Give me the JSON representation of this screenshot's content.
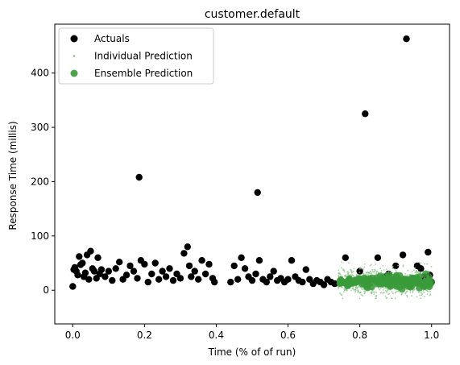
{
  "chart_data": {
    "type": "scatter",
    "title": "customer.default",
    "xlabel": "Time (% of of run)",
    "ylabel": "Response Time (millis)",
    "xlim": [
      -0.05,
      1.05
    ],
    "ylim": [
      -62,
      490
    ],
    "xticks": [
      0.0,
      0.2,
      0.4,
      0.6,
      0.8,
      1.0
    ],
    "xtick_labels": [
      "0.0",
      "0.2",
      "0.4",
      "0.6",
      "0.8",
      "1.0"
    ],
    "yticks": [
      0,
      100,
      200,
      300,
      400
    ],
    "ytick_labels": [
      "0",
      "100",
      "200",
      "300",
      "400"
    ],
    "grid": false,
    "legend_position": "top-left",
    "series": [
      {
        "name": "Actuals",
        "color": "#000000",
        "marker": "circle",
        "points": [
          [
            0.0,
            7
          ],
          [
            0.003,
            38
          ],
          [
            0.006,
            42
          ],
          [
            0.01,
            35
          ],
          [
            0.014,
            28
          ],
          [
            0.018,
            62
          ],
          [
            0.022,
            47
          ],
          [
            0.027,
            50
          ],
          [
            0.031,
            25
          ],
          [
            0.035,
            32
          ],
          [
            0.04,
            65
          ],
          [
            0.045,
            20
          ],
          [
            0.05,
            72
          ],
          [
            0.055,
            40
          ],
          [
            0.06,
            35
          ],
          [
            0.066,
            22
          ],
          [
            0.07,
            60
          ],
          [
            0.075,
            30
          ],
          [
            0.08,
            38
          ],
          [
            0.09,
            25
          ],
          [
            0.1,
            35
          ],
          [
            0.11,
            18
          ],
          [
            0.12,
            40
          ],
          [
            0.13,
            52
          ],
          [
            0.14,
            20
          ],
          [
            0.15,
            28
          ],
          [
            0.16,
            45
          ],
          [
            0.17,
            35
          ],
          [
            0.18,
            22
          ],
          [
            0.185,
            208
          ],
          [
            0.19,
            55
          ],
          [
            0.2,
            48
          ],
          [
            0.21,
            15
          ],
          [
            0.22,
            30
          ],
          [
            0.23,
            50
          ],
          [
            0.24,
            20
          ],
          [
            0.25,
            35
          ],
          [
            0.26,
            25
          ],
          [
            0.27,
            40
          ],
          [
            0.28,
            18
          ],
          [
            0.29,
            30
          ],
          [
            0.3,
            22
          ],
          [
            0.31,
            68
          ],
          [
            0.32,
            80
          ],
          [
            0.325,
            45
          ],
          [
            0.33,
            25
          ],
          [
            0.34,
            35
          ],
          [
            0.35,
            20
          ],
          [
            0.36,
            55
          ],
          [
            0.37,
            30
          ],
          [
            0.38,
            48
          ],
          [
            0.39,
            22
          ],
          [
            0.395,
            15
          ],
          [
            0.44,
            15
          ],
          [
            0.45,
            45
          ],
          [
            0.46,
            20
          ],
          [
            0.47,
            60
          ],
          [
            0.48,
            40
          ],
          [
            0.49,
            25
          ],
          [
            0.5,
            18
          ],
          [
            0.51,
            30
          ],
          [
            0.515,
            180
          ],
          [
            0.52,
            55
          ],
          [
            0.53,
            20
          ],
          [
            0.54,
            15
          ],
          [
            0.55,
            25
          ],
          [
            0.56,
            35
          ],
          [
            0.57,
            18
          ],
          [
            0.58,
            22
          ],
          [
            0.59,
            15
          ],
          [
            0.6,
            20
          ],
          [
            0.61,
            55
          ],
          [
            0.62,
            25
          ],
          [
            0.63,
            18
          ],
          [
            0.64,
            15
          ],
          [
            0.65,
            38
          ],
          [
            0.66,
            20
          ],
          [
            0.67,
            12
          ],
          [
            0.68,
            18
          ],
          [
            0.69,
            15
          ],
          [
            0.7,
            10
          ],
          [
            0.71,
            20
          ],
          [
            0.72,
            15
          ],
          [
            0.73,
            12
          ],
          [
            0.76,
            60
          ],
          [
            0.78,
            15
          ],
          [
            0.8,
            35
          ],
          [
            0.815,
            325
          ],
          [
            0.82,
            20
          ],
          [
            0.85,
            60
          ],
          [
            0.87,
            25
          ],
          [
            0.88,
            30
          ],
          [
            0.9,
            45
          ],
          [
            0.92,
            65
          ],
          [
            0.93,
            463
          ],
          [
            0.95,
            20
          ],
          [
            0.96,
            45
          ],
          [
            0.97,
            40
          ],
          [
            0.98,
            25
          ],
          [
            0.99,
            70
          ],
          [
            0.995,
            28
          ],
          [
            1.0,
            15
          ]
        ]
      },
      {
        "name": "Individual Prediction",
        "color": "#7fbf7f",
        "marker": "small-dot",
        "x_range": [
          0.74,
          1.0
        ],
        "y_center": 15,
        "y_spread": [
          -15,
          60
        ],
        "count": 900
      },
      {
        "name": "Ensemble Prediction",
        "color": "#3a9a3a",
        "marker": "circle",
        "x_range": [
          0.74,
          1.0
        ],
        "y_center": 15,
        "y_spread": [
          0,
          32
        ],
        "count": 150
      }
    ]
  }
}
